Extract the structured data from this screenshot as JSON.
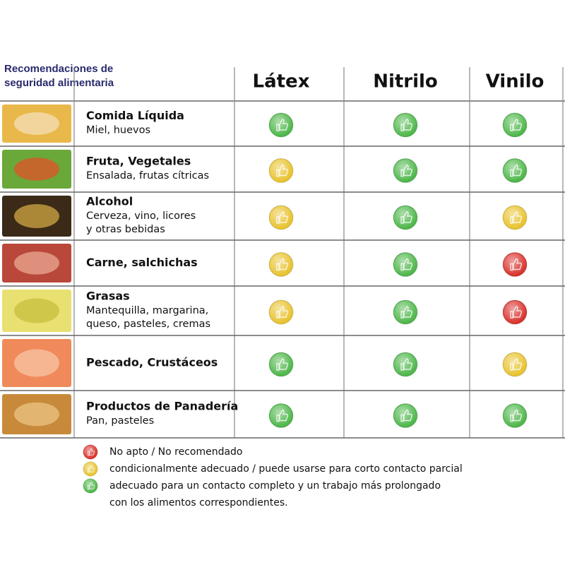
{
  "header": {
    "title": [
      "Recomendaciones de",
      "seguridad alimentaria"
    ]
  },
  "columns": [
    "Látex",
    "Nitrilo",
    "Vinilo"
  ],
  "rows": [
    {
      "name": "Comida Líquida",
      "desc": [
        "Miel, huevos"
      ],
      "ratings": [
        "#4cb648",
        "#4cb648",
        "#4cb648"
      ]
    },
    {
      "name": "Fruta, Vegetales",
      "desc": [
        "Ensalada, frutas cítricas"
      ],
      "ratings": [
        "#e8c22c",
        "#4cb648",
        "#4cb648"
      ]
    },
    {
      "name": "Alcohol",
      "desc": [
        "Cerveza, vino, licores",
        "y otras bebidas"
      ],
      "ratings": [
        "#e8c22c",
        "#4cb648",
        "#e8c22c"
      ]
    },
    {
      "name": "Carne, salchichas",
      "desc": [],
      "ratings": [
        "#e8c22c",
        "#4cb648",
        "#d8302a"
      ]
    },
    {
      "name": "Grasas",
      "desc": [
        "Mantequilla, margarina,",
        "queso, pasteles, cremas"
      ],
      "ratings": [
        "#e8c22c",
        "#4cb648",
        "#d8302a"
      ]
    },
    {
      "name": "Pescado, Crustáceos",
      "desc": [],
      "ratings": [
        "#4cb648",
        "#4cb648",
        "#e8c22c"
      ]
    },
    {
      "name": "Productos de Panadería",
      "desc": [
        "Pan, pasteles"
      ],
      "ratings": [
        "#4cb648",
        "#4cb648",
        "#4cb648"
      ]
    }
  ],
  "legend": [
    {
      "color": "#d8302a",
      "lines": [
        "No apto / No recomendado"
      ]
    },
    {
      "color": "#e8c22c",
      "lines": [
        "condicionalmente adecuado / puede usarse para corto contacto parcial"
      ]
    },
    {
      "color": "#4cb648",
      "lines": [
        "adecuado para un contacto completo y un trabajo más prolongado",
        "con los alimentos correspondientes."
      ]
    }
  ]
}
